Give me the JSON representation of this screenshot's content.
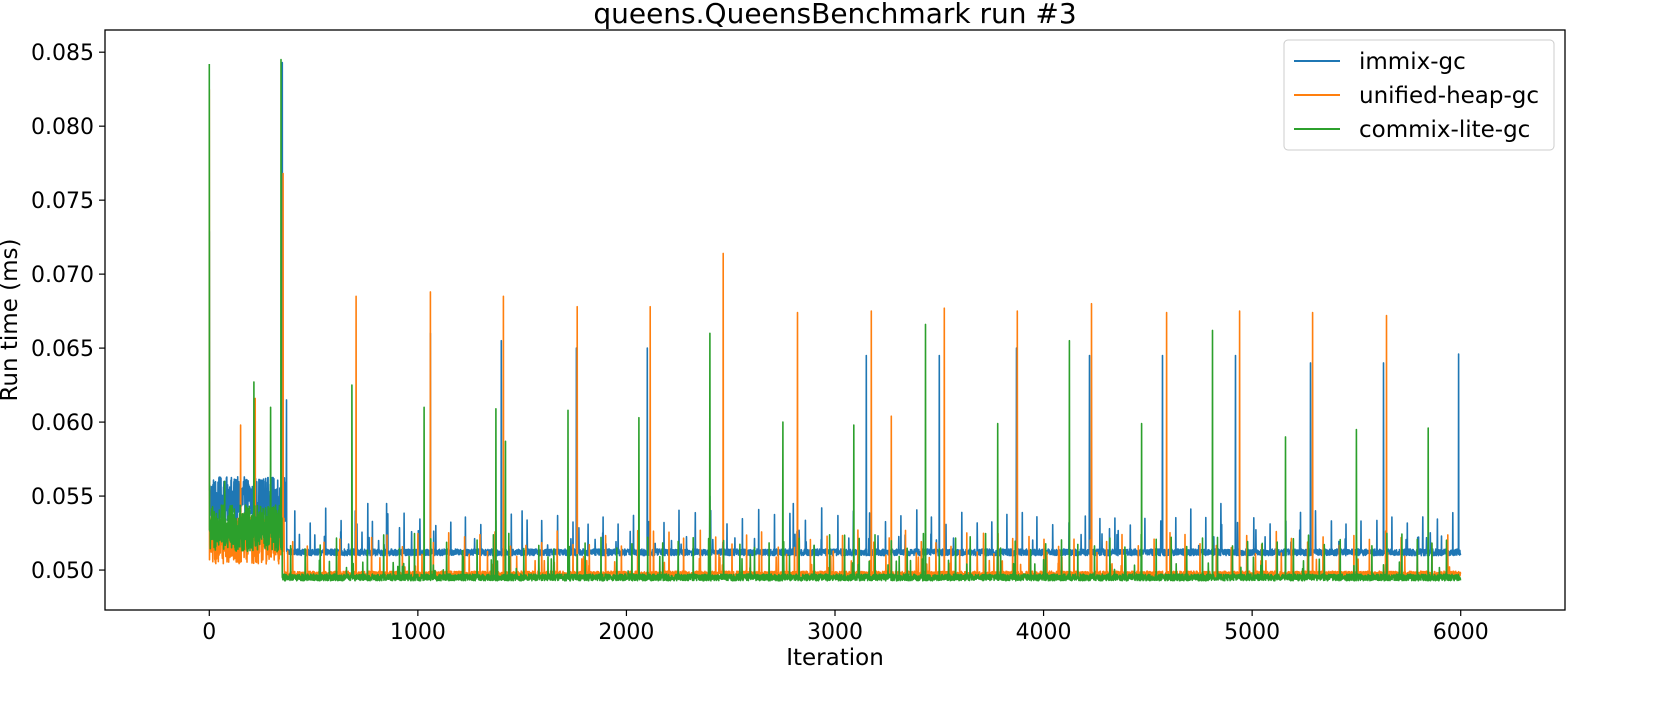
{
  "chart_data": {
    "type": "line",
    "title": "queens.QueensBenchmark run #3",
    "xlabel": "Iteration",
    "ylabel": "Run time (ms)",
    "xlim": [
      -500,
      6500
    ],
    "ylim": [
      0.0473,
      0.0865
    ],
    "xticks": [
      0,
      1000,
      2000,
      3000,
      4000,
      5000,
      6000
    ],
    "xtick_labels": [
      "0",
      "1000",
      "2000",
      "3000",
      "4000",
      "5000",
      "6000"
    ],
    "yticks": [
      0.05,
      0.055,
      0.06,
      0.065,
      0.07,
      0.075,
      0.08,
      0.085
    ],
    "ytick_labels": [
      "0.050",
      "0.055",
      "0.060",
      "0.065",
      "0.070",
      "0.075",
      "0.080",
      "0.085"
    ],
    "grid": false,
    "legend_position": "top-right",
    "iterations": 6000,
    "series": [
      {
        "name": "immix-gc",
        "color": "#1f77b4",
        "warmup_start": 0.0729,
        "warmup_level": 0.0547,
        "warmup_end": 370,
        "steady_level": 0.0512,
        "spikes": [
          [
            350,
            0.0843
          ],
          [
            370,
            0.0615
          ],
          [
            700,
            0.054
          ],
          [
            760,
            0.0545
          ],
          [
            850,
            0.0545
          ],
          [
            1060,
            0.066
          ],
          [
            1400,
            0.0655
          ],
          [
            1500,
            0.054
          ],
          [
            1760,
            0.065
          ],
          [
            2100,
            0.065
          ],
          [
            2400,
            0.055
          ],
          [
            2800,
            0.0545
          ],
          [
            3150,
            0.0645
          ],
          [
            3500,
            0.0645
          ],
          [
            3870,
            0.065
          ],
          [
            4220,
            0.0645
          ],
          [
            4570,
            0.0645
          ],
          [
            4850,
            0.0545
          ],
          [
            4920,
            0.0645
          ],
          [
            5280,
            0.064
          ],
          [
            5630,
            0.064
          ],
          [
            5990,
            0.0646
          ]
        ]
      },
      {
        "name": "unified-heap-gc",
        "color": "#ff7f0e",
        "warmup_start": 0.0825,
        "warmup_level": 0.052,
        "warmup_end": 360,
        "steady_level": 0.0497,
        "spikes": [
          [
            150,
            0.0598
          ],
          [
            220,
            0.0616
          ],
          [
            355,
            0.0768
          ],
          [
            705,
            0.0685
          ],
          [
            1060,
            0.0688
          ],
          [
            1410,
            0.0685
          ],
          [
            1765,
            0.0678
          ],
          [
            2115,
            0.0678
          ],
          [
            2465,
            0.0714
          ],
          [
            2820,
            0.0674
          ],
          [
            3175,
            0.0675
          ],
          [
            3270,
            0.0604
          ],
          [
            3525,
            0.0677
          ],
          [
            3875,
            0.0675
          ],
          [
            4230,
            0.068
          ],
          [
            4590,
            0.0674
          ],
          [
            4940,
            0.0675
          ],
          [
            5290,
            0.0674
          ],
          [
            5645,
            0.0672
          ]
        ]
      },
      {
        "name": "commix-lite-gc",
        "color": "#2ca02c",
        "warmup_start": 0.0842,
        "warmup_level": 0.0528,
        "warmup_end": 350,
        "steady_level": 0.0495,
        "spikes": [
          [
            75,
            0.056
          ],
          [
            215,
            0.0627
          ],
          [
            295,
            0.061
          ],
          [
            345,
            0.0845
          ],
          [
            685,
            0.0625
          ],
          [
            1030,
            0.061
          ],
          [
            1375,
            0.0609
          ],
          [
            1420,
            0.0587
          ],
          [
            1720,
            0.0608
          ],
          [
            2060,
            0.0603
          ],
          [
            2400,
            0.066
          ],
          [
            2750,
            0.06
          ],
          [
            3090,
            0.0598
          ],
          [
            3435,
            0.0666
          ],
          [
            3780,
            0.0599
          ],
          [
            4125,
            0.0655
          ],
          [
            4470,
            0.0599
          ],
          [
            4810,
            0.0662
          ],
          [
            5160,
            0.059
          ],
          [
            5500,
            0.0595
          ],
          [
            5845,
            0.0596
          ]
        ]
      }
    ]
  }
}
